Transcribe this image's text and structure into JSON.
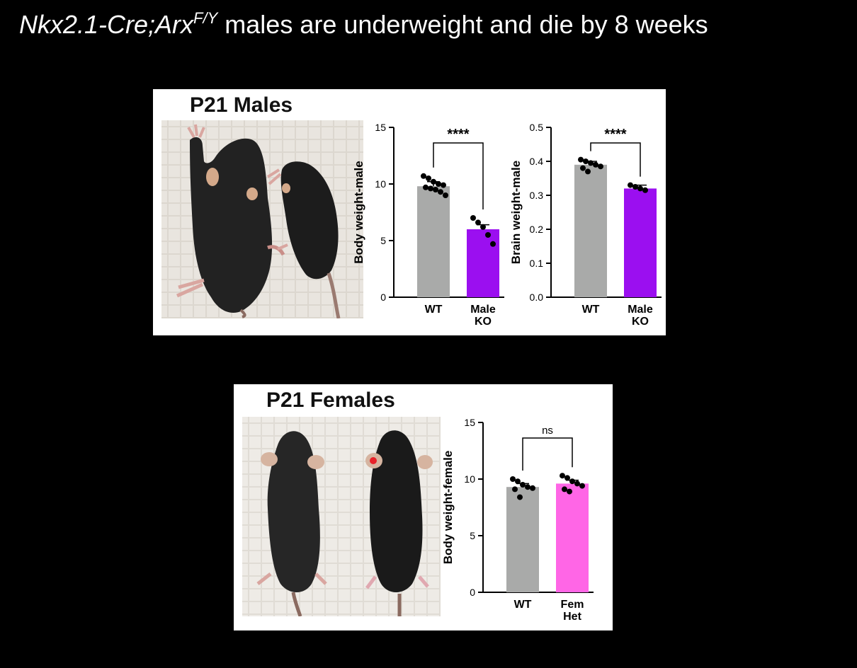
{
  "slide": {
    "title_italic_part": "Nkx2.1-Cre;Arx",
    "title_superscript": "F/Y",
    "title_rest": " males are underweight and die by 8 weeks"
  },
  "males_panel": {
    "heading": "P21 Males"
  },
  "females_panel": {
    "heading": "P21 Females"
  },
  "colors": {
    "wt_bar": "#a9aaa9",
    "male_ko_bar": "#9b0ff0",
    "fem_het_bar": "#ff66e6",
    "background": "#000000",
    "panel": "#ffffff"
  },
  "chart_data": [
    {
      "id": "male-body",
      "type": "bar",
      "ylabel": "Body weight-male",
      "ylim": [
        0,
        15
      ],
      "yticks": [
        "0",
        "5",
        "10",
        "15"
      ],
      "categories": [
        "WT",
        "Male\nKO"
      ],
      "values": [
        9.8,
        6.0
      ],
      "error": [
        0.4,
        0.4
      ],
      "points": [
        [
          10.7,
          10.5,
          10.2,
          10.0,
          9.9,
          9.7,
          9.6,
          9.5,
          9.3,
          9.0
        ],
        [
          7.0,
          6.6,
          6.2,
          5.5,
          4.7
        ]
      ],
      "significance": "****",
      "bar_colors": [
        "#a9aaa9",
        "#9b0ff0"
      ]
    },
    {
      "id": "male-brain",
      "type": "bar",
      "ylabel": "Brain weight-male",
      "ylim": [
        0,
        0.5
      ],
      "yticks": [
        "0.0",
        "0.1",
        "0.2",
        "0.3",
        "0.4",
        "0.5"
      ],
      "categories": [
        "WT",
        "Male\nKO"
      ],
      "values": [
        0.39,
        0.32
      ],
      "error": [
        0.01,
        0.01
      ],
      "points": [
        [
          0.405,
          0.4,
          0.395,
          0.39,
          0.385,
          0.38,
          0.37
        ],
        [
          0.33,
          0.325,
          0.32,
          0.315
        ]
      ],
      "significance": "****",
      "bar_colors": [
        "#a9aaa9",
        "#9b0ff0"
      ]
    },
    {
      "id": "female-body",
      "type": "bar",
      "ylabel": "Body weight-female",
      "ylim": [
        0,
        15
      ],
      "yticks": [
        "0",
        "5",
        "10",
        "15"
      ],
      "categories": [
        "WT",
        "Fem\nHet"
      ],
      "values": [
        9.3,
        9.6
      ],
      "error": [
        0.3,
        0.3
      ],
      "points": [
        [
          10.0,
          9.8,
          9.5,
          9.3,
          9.2,
          9.1,
          8.4
        ],
        [
          10.3,
          10.1,
          9.8,
          9.6,
          9.4,
          9.1,
          8.9
        ]
      ],
      "significance": "ns",
      "bar_colors": [
        "#a9aaa9",
        "#ff66e6"
      ]
    }
  ]
}
